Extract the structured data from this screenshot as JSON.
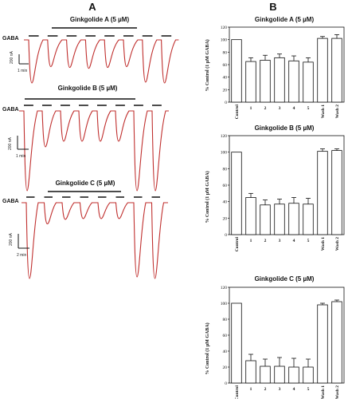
{
  "panels": {
    "left_letter": "A",
    "right_letter": "B"
  },
  "traces": [
    {
      "title": "Ginkgolide A (5 µM)",
      "gaba_label": "GABA",
      "scale_current": "200 nA",
      "scale_time": "1 min",
      "responses": [
        1.0,
        0.62,
        0.64,
        0.66,
        0.64,
        0.62,
        0.98,
        1.0
      ]
    },
    {
      "title": "Ginkgolide B (5 µM)",
      "gaba_label": "GABA",
      "scale_current": "200 nA",
      "scale_time": "1 min",
      "responses": [
        1.0,
        0.45,
        0.38,
        0.38,
        0.38,
        0.38,
        1.0,
        1.0
      ]
    },
    {
      "title": "Ginkgolide C (5 µM)",
      "gaba_label": "GABA",
      "scale_current": "200 nA",
      "scale_time": "2 min",
      "responses": [
        1.0,
        0.28,
        0.22,
        0.21,
        0.21,
        0.21,
        0.98,
        1.0
      ]
    }
  ],
  "chart_data": [
    {
      "type": "bar",
      "title": "Ginkgolide A (5 µM)",
      "ylabel": "% Control (1 µM GABA)",
      "ylim": [
        0,
        120
      ],
      "yticks": [
        "0",
        "20",
        "40",
        "60",
        "80",
        "100",
        "120"
      ],
      "categories": [
        "Control",
        "1",
        "2",
        "3",
        "4",
        "5",
        "Wash 1",
        "Wash 2"
      ],
      "values": [
        100,
        65,
        67,
        71,
        66,
        64,
        102,
        102
      ],
      "errors": [
        0,
        6,
        8,
        6,
        8,
        7,
        3,
        6
      ]
    },
    {
      "type": "bar",
      "title": "Ginkgolide B (5 µM)",
      "ylabel": "% Control (1 µM GABA)",
      "ylim": [
        0,
        120
      ],
      "yticks": [
        "0",
        "20",
        "40",
        "60",
        "80",
        "100",
        "120"
      ],
      "categories": [
        "Control",
        "1",
        "2",
        "3",
        "4",
        "5",
        "Wash 1",
        "Wash 2"
      ],
      "values": [
        100,
        45,
        36,
        37,
        38,
        37,
        101,
        102
      ],
      "errors": [
        0,
        5,
        6,
        6,
        7,
        7,
        3,
        2
      ]
    },
    {
      "type": "bar",
      "title": "Ginkgolide C (5 µM)",
      "ylabel": "% Control (1 µM GABA)",
      "ylim": [
        0,
        120
      ],
      "yticks": [
        "0",
        "20",
        "40",
        "60",
        "80",
        "100",
        "120"
      ],
      "categories": [
        "Control",
        "1",
        "2",
        "3",
        "4",
        "5",
        "Wash 1",
        "Wash 2"
      ],
      "values": [
        100,
        28,
        21,
        21,
        20,
        20,
        98,
        102
      ],
      "errors": [
        0,
        8,
        9,
        11,
        11,
        10,
        2,
        2
      ]
    }
  ],
  "colors": {
    "trace": "#c0302f",
    "ink": "#111111"
  }
}
